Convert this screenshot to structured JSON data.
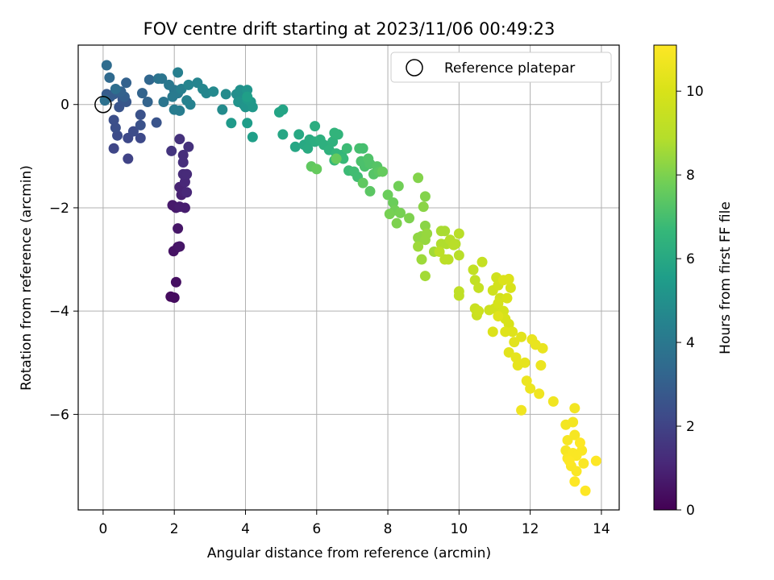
{
  "chart_data": {
    "type": "scatter",
    "title": "FOV centre drift starting at 2023/11/06 00:49:23",
    "xlabel": "Angular distance from reference (arcmin)",
    "ylabel": "Rotation from reference (arcmin)",
    "colorbar_label": "Hours from first FF file",
    "colormap": "viridis",
    "xlim": [
      -0.7,
      14.5
    ],
    "ylim": [
      -7.85,
      1.15
    ],
    "x_ticks": [
      0,
      2,
      4,
      6,
      8,
      10,
      12,
      14
    ],
    "y_ticks": [
      0,
      -2,
      -4,
      -6
    ],
    "x_tick_labels": [
      "0",
      "2",
      "4",
      "6",
      "8",
      "10",
      "12",
      "14"
    ],
    "y_tick_labels": [
      "0",
      "−2",
      "−4",
      "−6"
    ],
    "colorbar_range": [
      0,
      11.1
    ],
    "colorbar_ticks": [
      0,
      2,
      4,
      6,
      8,
      10
    ],
    "colorbar_tick_labels": [
      "0",
      "2",
      "4",
      "6",
      "8",
      "10"
    ],
    "grid": true,
    "legend": {
      "position": "upper right",
      "entries": [
        "Reference platepar"
      ]
    },
    "reference_point": {
      "x": 0,
      "y": 0,
      "label": "Reference platepar"
    },
    "points": [
      [
        1.9,
        -3.72,
        0.3
      ],
      [
        2.0,
        -3.74,
        0.3
      ],
      [
        2.05,
        -3.44,
        0.4
      ],
      [
        1.98,
        -2.84,
        0.5
      ],
      [
        2.1,
        -2.76,
        0.5
      ],
      [
        2.15,
        -2.75,
        0.6
      ],
      [
        2.1,
        -2.4,
        0.6
      ],
      [
        1.95,
        -1.95,
        0.7
      ],
      [
        2.05,
        -2.0,
        0.7
      ],
      [
        2.15,
        -1.98,
        0.8
      ],
      [
        2.3,
        -2.0,
        0.8
      ],
      [
        2.2,
        -1.75,
        0.9
      ],
      [
        2.25,
        -1.68,
        1.0
      ],
      [
        2.15,
        -1.6,
        1.0
      ],
      [
        2.35,
        -1.7,
        1.1
      ],
      [
        2.3,
        -1.5,
        1.1
      ],
      [
        2.25,
        -1.35,
        1.2
      ],
      [
        2.35,
        -1.35,
        1.2
      ],
      [
        2.25,
        -1.12,
        1.3
      ],
      [
        2.25,
        -0.98,
        1.3
      ],
      [
        2.4,
        -0.82,
        1.4
      ],
      [
        2.15,
        -0.67,
        1.4
      ],
      [
        1.92,
        -0.9,
        1.5
      ],
      [
        0.7,
        -1.05,
        2.0
      ],
      [
        0.3,
        -0.85,
        2.1
      ],
      [
        0.7,
        -0.65,
        2.2
      ],
      [
        1.05,
        -0.65,
        2.2
      ],
      [
        0.85,
        -0.52,
        2.3
      ],
      [
        0.4,
        -0.6,
        2.3
      ],
      [
        0.35,
        -0.45,
        2.4
      ],
      [
        0.3,
        -0.3,
        2.4
      ],
      [
        1.05,
        -0.4,
        2.5
      ],
      [
        1.05,
        -0.2,
        2.5
      ],
      [
        1.5,
        -0.35,
        2.6
      ],
      [
        0.45,
        -0.05,
        2.6
      ],
      [
        0.65,
        0.05,
        2.7
      ],
      [
        0.55,
        0.1,
        2.7
      ],
      [
        0.3,
        0.2,
        2.8
      ],
      [
        0.2,
        0.15,
        2.9
      ],
      [
        0.1,
        0.2,
        2.9
      ],
      [
        0.4,
        0.25,
        3.0
      ],
      [
        0.6,
        0.15,
        3.0
      ],
      [
        0.5,
        0.25,
        3.1
      ],
      [
        0.65,
        0.42,
        3.1
      ],
      [
        1.1,
        0.22,
        3.2
      ],
      [
        1.25,
        0.05,
        3.2
      ],
      [
        1.3,
        0.48,
        3.3
      ],
      [
        0.18,
        0.52,
        3.4
      ],
      [
        0.1,
        0.76,
        3.5
      ],
      [
        0.35,
        0.3,
        3.6
      ],
      [
        0.05,
        0.08,
        3.7
      ],
      [
        1.55,
        0.5,
        3.8
      ],
      [
        1.65,
        0.5,
        3.9
      ],
      [
        1.7,
        0.05,
        3.9
      ],
      [
        1.85,
        0.38,
        4.0
      ],
      [
        2.0,
        0.28,
        4.0
      ],
      [
        2.1,
        0.22,
        4.1
      ],
      [
        1.95,
        0.15,
        4.1
      ],
      [
        2.0,
        -0.1,
        4.2
      ],
      [
        2.15,
        -0.12,
        4.2
      ],
      [
        2.1,
        0.62,
        4.3
      ],
      [
        2.2,
        0.3,
        4.3
      ],
      [
        2.35,
        0.08,
        4.4
      ],
      [
        2.45,
        0.0,
        4.4
      ],
      [
        2.4,
        0.38,
        4.5
      ],
      [
        2.65,
        0.42,
        4.5
      ],
      [
        2.8,
        0.3,
        4.6
      ],
      [
        2.9,
        0.22,
        4.6
      ],
      [
        3.1,
        0.25,
        4.7
      ],
      [
        3.35,
        -0.1,
        4.8
      ],
      [
        3.45,
        0.2,
        4.8
      ],
      [
        3.75,
        0.2,
        4.9
      ],
      [
        3.85,
        0.28,
        5.0
      ],
      [
        3.95,
        0.15,
        5.0
      ],
      [
        3.8,
        0.05,
        5.1
      ],
      [
        3.95,
        0.0,
        5.1
      ],
      [
        4.0,
        -0.05,
        5.2
      ],
      [
        4.05,
        0.28,
        5.2
      ],
      [
        4.15,
        0.05,
        5.3
      ],
      [
        4.2,
        -0.05,
        5.3
      ],
      [
        4.05,
        0.1,
        5.4
      ],
      [
        3.6,
        -0.36,
        5.4
      ],
      [
        4.05,
        -0.36,
        5.5
      ],
      [
        4.2,
        -0.63,
        5.6
      ],
      [
        4.05,
        0.15,
        5.6
      ],
      [
        4.95,
        -0.15,
        5.8
      ],
      [
        5.05,
        -0.1,
        5.8
      ],
      [
        5.05,
        -0.58,
        5.9
      ],
      [
        5.4,
        -0.82,
        5.9
      ],
      [
        5.5,
        -0.58,
        6.0
      ],
      [
        5.65,
        -0.78,
        6.0
      ],
      [
        5.75,
        -0.85,
        6.1
      ],
      [
        5.8,
        -0.68,
        6.1
      ],
      [
        5.95,
        -0.72,
        6.2
      ],
      [
        5.95,
        -0.42,
        6.2
      ],
      [
        6.1,
        -0.68,
        6.3
      ],
      [
        6.2,
        -0.78,
        6.3
      ],
      [
        6.35,
        -0.88,
        6.4
      ],
      [
        6.45,
        -0.72,
        6.4
      ],
      [
        6.5,
        -0.55,
        6.5
      ],
      [
        6.6,
        -0.58,
        6.5
      ],
      [
        6.55,
        -0.95,
        6.6
      ],
      [
        6.7,
        -0.98,
        6.6
      ],
      [
        6.5,
        -1.08,
        6.7
      ],
      [
        6.75,
        -1.05,
        6.7
      ],
      [
        6.85,
        -0.85,
        6.8
      ],
      [
        6.9,
        -1.28,
        6.8
      ],
      [
        7.05,
        -1.3,
        6.9
      ],
      [
        7.15,
        -1.4,
        6.9
      ],
      [
        7.2,
        -0.85,
        7.0
      ],
      [
        7.3,
        -0.85,
        7.0
      ],
      [
        7.25,
        -1.1,
        7.1
      ],
      [
        7.35,
        -1.2,
        7.1
      ],
      [
        7.45,
        -1.05,
        7.2
      ],
      [
        7.5,
        -1.15,
        7.2
      ],
      [
        7.6,
        -1.35,
        7.3
      ],
      [
        7.7,
        -1.2,
        7.3
      ],
      [
        7.75,
        -1.3,
        7.4
      ],
      [
        7.5,
        -1.68,
        7.4
      ],
      [
        7.3,
        -1.52,
        7.5
      ],
      [
        5.85,
        -1.2,
        7.5
      ],
      [
        6.0,
        -1.25,
        7.6
      ],
      [
        6.55,
        -1.05,
        7.6
      ],
      [
        7.85,
        -1.3,
        7.6
      ],
      [
        8.0,
        -1.75,
        7.7
      ],
      [
        8.15,
        -1.9,
        7.7
      ],
      [
        8.3,
        -1.58,
        7.8
      ],
      [
        8.2,
        -2.05,
        7.8
      ],
      [
        8.05,
        -2.12,
        7.9
      ],
      [
        8.35,
        -2.1,
        7.9
      ],
      [
        8.25,
        -2.3,
        8.0
      ],
      [
        8.6,
        -2.2,
        8.0
      ],
      [
        8.85,
        -1.42,
        8.1
      ],
      [
        9.05,
        -1.78,
        8.1
      ],
      [
        9.0,
        -1.98,
        8.2
      ],
      [
        9.05,
        -2.35,
        8.2
      ],
      [
        8.85,
        -2.58,
        8.3
      ],
      [
        8.95,
        -2.55,
        8.3
      ],
      [
        9.1,
        -2.5,
        8.4
      ],
      [
        9.05,
        -2.62,
        8.4
      ],
      [
        8.85,
        -2.75,
        8.5
      ],
      [
        8.95,
        -3.0,
        8.5
      ],
      [
        9.05,
        -3.32,
        8.6
      ],
      [
        9.3,
        -2.85,
        8.6
      ],
      [
        9.5,
        -2.45,
        8.7
      ],
      [
        9.6,
        -2.45,
        8.7
      ],
      [
        9.5,
        -2.7,
        8.8
      ],
      [
        9.65,
        -2.7,
        8.8
      ],
      [
        9.75,
        -2.62,
        8.9
      ],
      [
        9.9,
        -2.7,
        8.9
      ],
      [
        10.0,
        -2.5,
        9.0
      ],
      [
        10.0,
        -2.92,
        9.0
      ],
      [
        9.85,
        -2.72,
        9.0
      ],
      [
        9.6,
        -3.0,
        9.1
      ],
      [
        9.7,
        -3.0,
        9.1
      ],
      [
        9.45,
        -2.85,
        9.1
      ],
      [
        10.0,
        -3.62,
        9.2
      ],
      [
        10.0,
        -3.7,
        9.2
      ],
      [
        10.4,
        -3.2,
        9.3
      ],
      [
        10.45,
        -3.4,
        9.3
      ],
      [
        10.55,
        -3.55,
        9.4
      ],
      [
        10.65,
        -3.05,
        9.4
      ],
      [
        10.45,
        -3.95,
        9.5
      ],
      [
        10.5,
        -4.08,
        9.5
      ],
      [
        10.55,
        -4.0,
        9.6
      ],
      [
        10.85,
        -3.98,
        9.6
      ],
      [
        10.95,
        -3.6,
        9.7
      ],
      [
        11.05,
        -3.35,
        9.7
      ],
      [
        11.1,
        -3.5,
        9.8
      ],
      [
        11.15,
        -3.75,
        9.8
      ],
      [
        11.0,
        -3.95,
        9.8
      ],
      [
        11.1,
        -3.85,
        9.9
      ],
      [
        11.25,
        -4.0,
        9.9
      ],
      [
        11.35,
        -3.75,
        10.0
      ],
      [
        11.45,
        -3.55,
        10.0
      ],
      [
        11.3,
        -4.15,
        10.0
      ],
      [
        11.4,
        -4.25,
        10.0
      ],
      [
        11.25,
        -3.4,
        10.1
      ],
      [
        11.4,
        -3.38,
        10.1
      ],
      [
        10.95,
        -4.4,
        10.1
      ],
      [
        11.1,
        -4.1,
        10.2
      ],
      [
        11.3,
        -4.4,
        10.2
      ],
      [
        11.5,
        -4.4,
        10.2
      ],
      [
        11.4,
        -4.8,
        10.3
      ],
      [
        11.55,
        -4.6,
        10.3
      ],
      [
        11.75,
        -4.5,
        10.3
      ],
      [
        11.6,
        -4.9,
        10.4
      ],
      [
        11.65,
        -5.05,
        10.4
      ],
      [
        11.85,
        -5.0,
        10.4
      ],
      [
        12.05,
        -4.55,
        10.5
      ],
      [
        12.15,
        -4.65,
        10.5
      ],
      [
        12.35,
        -4.72,
        10.5
      ],
      [
        12.3,
        -5.05,
        10.6
      ],
      [
        11.9,
        -5.35,
        10.6
      ],
      [
        12.0,
        -5.5,
        10.6
      ],
      [
        12.25,
        -5.6,
        10.7
      ],
      [
        11.75,
        -5.92,
        10.7
      ],
      [
        12.65,
        -5.75,
        10.7
      ],
      [
        13.0,
        -6.2,
        10.8
      ],
      [
        13.2,
        -6.15,
        10.8
      ],
      [
        13.25,
        -5.88,
        10.8
      ],
      [
        13.05,
        -6.5,
        10.9
      ],
      [
        13.25,
        -6.4,
        10.9
      ],
      [
        13.0,
        -6.7,
        10.9
      ],
      [
        13.2,
        -6.75,
        11.0
      ],
      [
        13.05,
        -6.85,
        11.0
      ],
      [
        13.3,
        -6.8,
        11.0
      ],
      [
        13.15,
        -7.0,
        11.0
      ],
      [
        13.45,
        -6.7,
        11.0
      ],
      [
        13.5,
        -6.95,
        11.0
      ],
      [
        13.3,
        -7.1,
        11.0
      ],
      [
        13.25,
        -7.3,
        11.1
      ],
      [
        13.55,
        -7.48,
        11.1
      ],
      [
        13.85,
        -6.9,
        11.1
      ],
      [
        13.4,
        -6.55,
        11.1
      ],
      [
        13.1,
        -6.9,
        11.1
      ]
    ]
  }
}
